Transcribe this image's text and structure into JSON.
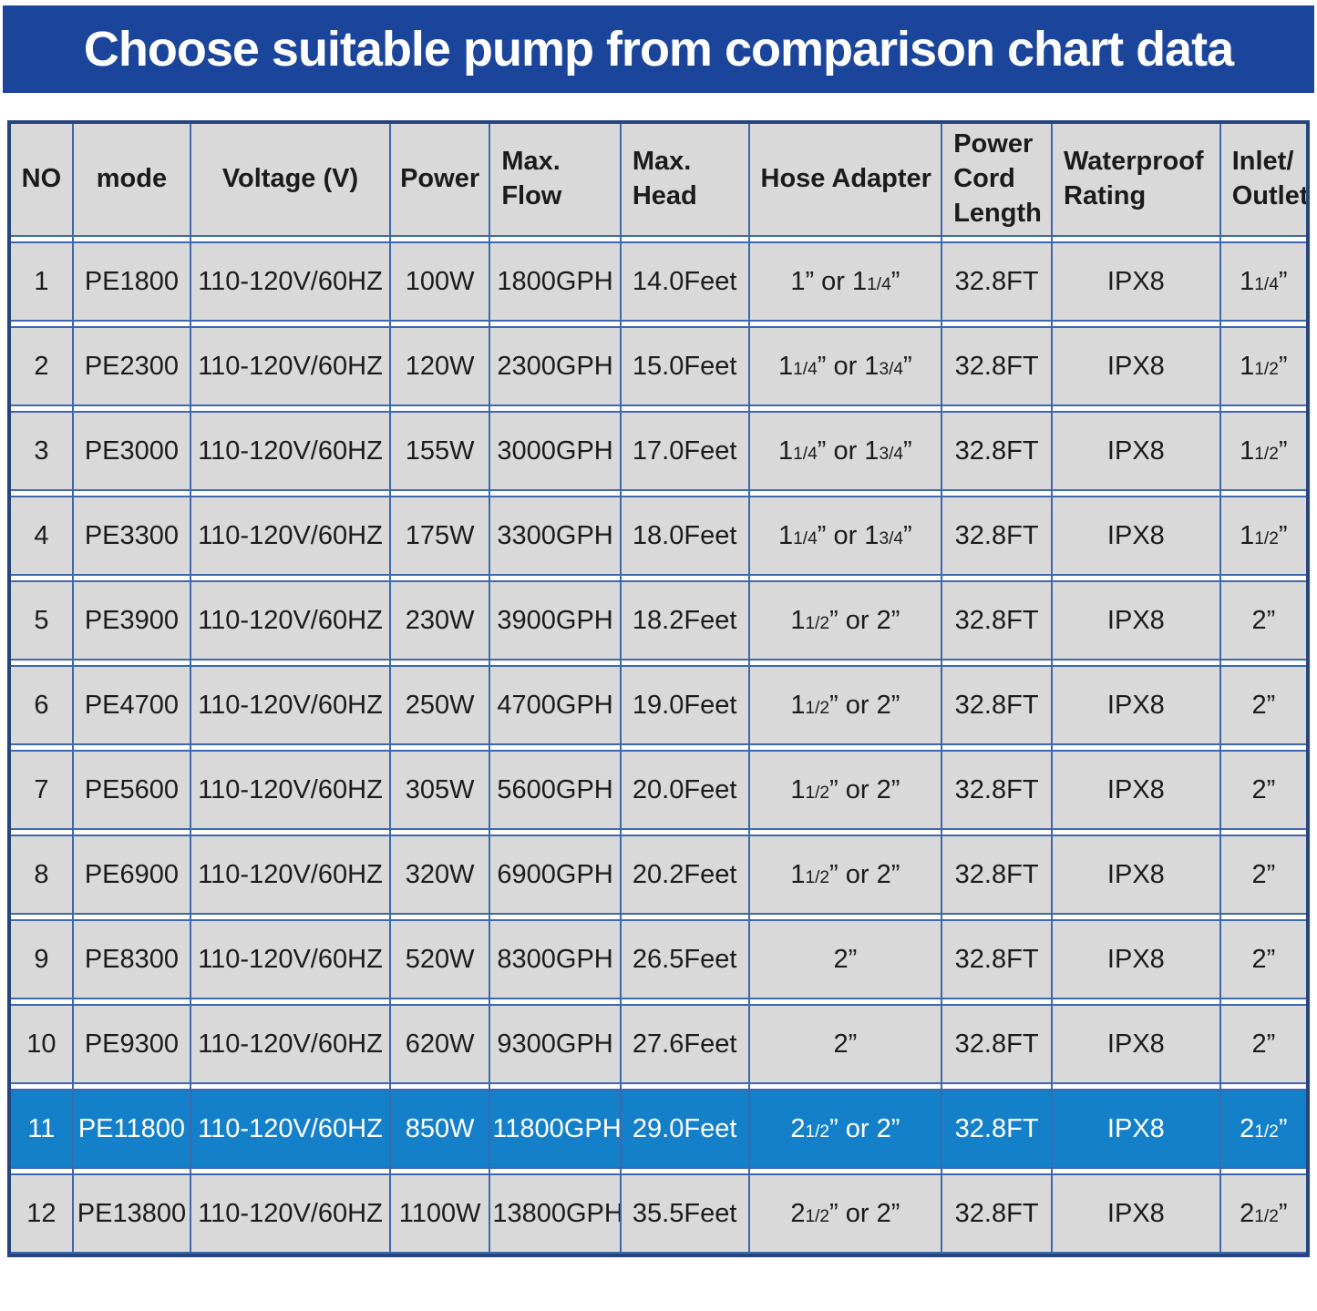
{
  "banner": {
    "title": "Choose suitable pump from comparison chart data"
  },
  "colors": {
    "banner_bg": "#1b459b",
    "outer_border": "#26457e",
    "grid_line": "#3e68ae",
    "cell_bg": "#d9d9d9",
    "highlight_bg": "#1480ca",
    "text_dark": "#1b1b1b",
    "text_light": "#ffffff"
  },
  "chart_data": {
    "type": "table",
    "title": "Choose suitable pump from comparison chart data",
    "highlighted_row_no": "11",
    "columns": [
      {
        "key": "no",
        "label": "NO"
      },
      {
        "key": "mode",
        "label": "mode"
      },
      {
        "key": "voltage",
        "label": "Voltage (V)"
      },
      {
        "key": "power",
        "label": "Power"
      },
      {
        "key": "max_flow",
        "label": "Max.\nFlow"
      },
      {
        "key": "max_head",
        "label": "Max.\nHead"
      },
      {
        "key": "hose_adapter",
        "label": "Hose Adapter"
      },
      {
        "key": "power_cord_length",
        "label": "Power\nCord\nLength"
      },
      {
        "key": "waterproof_rating",
        "label": "Waterproof\nRating"
      },
      {
        "key": "inlet_outlet",
        "label": "Inlet/\nOutlet"
      }
    ],
    "rows": [
      {
        "no": "1",
        "mode": "PE1800",
        "voltage": "110-120V/60HZ",
        "power": "100W",
        "max_flow": "1800GPH",
        "max_head": "14.0Feet",
        "hose_adapter": [
          {
            "t": "1” or 1"
          },
          {
            "t": "1/4",
            "frac": true
          },
          {
            "t": "”"
          }
        ],
        "power_cord_length": "32.8FT",
        "waterproof_rating": "IPX8",
        "inlet_outlet": [
          {
            "t": "1"
          },
          {
            "t": "1/4",
            "frac": true
          },
          {
            "t": "”"
          }
        ],
        "highlighted": false
      },
      {
        "no": "2",
        "mode": "PE2300",
        "voltage": "110-120V/60HZ",
        "power": "120W",
        "max_flow": "2300GPH",
        "max_head": "15.0Feet",
        "hose_adapter": [
          {
            "t": "1"
          },
          {
            "t": "1/4",
            "frac": true
          },
          {
            "t": "” or 1"
          },
          {
            "t": "3/4",
            "frac": true
          },
          {
            "t": "”"
          }
        ],
        "power_cord_length": "32.8FT",
        "waterproof_rating": "IPX8",
        "inlet_outlet": [
          {
            "t": "1"
          },
          {
            "t": "1/2",
            "frac": true
          },
          {
            "t": "”"
          }
        ],
        "highlighted": false
      },
      {
        "no": "3",
        "mode": "PE3000",
        "voltage": "110-120V/60HZ",
        "power": "155W",
        "max_flow": "3000GPH",
        "max_head": "17.0Feet",
        "hose_adapter": [
          {
            "t": "1"
          },
          {
            "t": "1/4",
            "frac": true
          },
          {
            "t": "” or 1"
          },
          {
            "t": "3/4",
            "frac": true
          },
          {
            "t": "”"
          }
        ],
        "power_cord_length": "32.8FT",
        "waterproof_rating": "IPX8",
        "inlet_outlet": [
          {
            "t": "1"
          },
          {
            "t": "1/2",
            "frac": true
          },
          {
            "t": "”"
          }
        ],
        "highlighted": false
      },
      {
        "no": "4",
        "mode": "PE3300",
        "voltage": "110-120V/60HZ",
        "power": "175W",
        "max_flow": "3300GPH",
        "max_head": "18.0Feet",
        "hose_adapter": [
          {
            "t": "1"
          },
          {
            "t": "1/4",
            "frac": true
          },
          {
            "t": "” or 1"
          },
          {
            "t": "3/4",
            "frac": true
          },
          {
            "t": "”"
          }
        ],
        "power_cord_length": "32.8FT",
        "waterproof_rating": "IPX8",
        "inlet_outlet": [
          {
            "t": "1"
          },
          {
            "t": "1/2",
            "frac": true
          },
          {
            "t": "”"
          }
        ],
        "highlighted": false
      },
      {
        "no": "5",
        "mode": "PE3900",
        "voltage": "110-120V/60HZ",
        "power": "230W",
        "max_flow": "3900GPH",
        "max_head": "18.2Feet",
        "hose_adapter": [
          {
            "t": "1"
          },
          {
            "t": "1/2",
            "frac": true
          },
          {
            "t": "” or 2”"
          }
        ],
        "power_cord_length": "32.8FT",
        "waterproof_rating": "IPX8",
        "inlet_outlet": "2”",
        "highlighted": false
      },
      {
        "no": "6",
        "mode": "PE4700",
        "voltage": "110-120V/60HZ",
        "power": "250W",
        "max_flow": "4700GPH",
        "max_head": "19.0Feet",
        "hose_adapter": [
          {
            "t": "1"
          },
          {
            "t": "1/2",
            "frac": true
          },
          {
            "t": "” or 2”"
          }
        ],
        "power_cord_length": "32.8FT",
        "waterproof_rating": "IPX8",
        "inlet_outlet": "2”",
        "highlighted": false
      },
      {
        "no": "7",
        "mode": "PE5600",
        "voltage": "110-120V/60HZ",
        "power": "305W",
        "max_flow": "5600GPH",
        "max_head": "20.0Feet",
        "hose_adapter": [
          {
            "t": "1"
          },
          {
            "t": "1/2",
            "frac": true
          },
          {
            "t": "” or 2”"
          }
        ],
        "power_cord_length": "32.8FT",
        "waterproof_rating": "IPX8",
        "inlet_outlet": "2”",
        "highlighted": false
      },
      {
        "no": "8",
        "mode": "PE6900",
        "voltage": "110-120V/60HZ",
        "power": "320W",
        "max_flow": "6900GPH",
        "max_head": "20.2Feet",
        "hose_adapter": [
          {
            "t": "1"
          },
          {
            "t": "1/2",
            "frac": true
          },
          {
            "t": "” or 2”"
          }
        ],
        "power_cord_length": "32.8FT",
        "waterproof_rating": "IPX8",
        "inlet_outlet": "2”",
        "highlighted": false
      },
      {
        "no": "9",
        "mode": "PE8300",
        "voltage": "110-120V/60HZ",
        "power": "520W",
        "max_flow": "8300GPH",
        "max_head": "26.5Feet",
        "hose_adapter": "2”",
        "power_cord_length": "32.8FT",
        "waterproof_rating": "IPX8",
        "inlet_outlet": "2”",
        "highlighted": false
      },
      {
        "no": "10",
        "mode": "PE9300",
        "voltage": "110-120V/60HZ",
        "power": "620W",
        "max_flow": "9300GPH",
        "max_head": "27.6Feet",
        "hose_adapter": "2”",
        "power_cord_length": "32.8FT",
        "waterproof_rating": "IPX8",
        "inlet_outlet": "2”",
        "highlighted": false
      },
      {
        "no": "11",
        "mode": "PE11800",
        "voltage": "110-120V/60HZ",
        "power": "850W",
        "max_flow": "11800GPH",
        "max_head": "29.0Feet",
        "hose_adapter": [
          {
            "t": "2"
          },
          {
            "t": "1/2",
            "frac": true
          },
          {
            "t": "” or 2”"
          }
        ],
        "power_cord_length": "32.8FT",
        "waterproof_rating": "IPX8",
        "inlet_outlet": [
          {
            "t": "2"
          },
          {
            "t": "1/2",
            "frac": true
          },
          {
            "t": "”"
          }
        ],
        "highlighted": true
      },
      {
        "no": "12",
        "mode": "PE13800",
        "voltage": "110-120V/60HZ",
        "power": "1100W",
        "max_flow": "13800GPH",
        "max_head": "35.5Feet",
        "hose_adapter": [
          {
            "t": "2"
          },
          {
            "t": "1/2",
            "frac": true
          },
          {
            "t": "” or 2”"
          }
        ],
        "power_cord_length": "32.8FT",
        "waterproof_rating": "IPX8",
        "inlet_outlet": [
          {
            "t": "2"
          },
          {
            "t": "1/2",
            "frac": true
          },
          {
            "t": "”"
          }
        ],
        "highlighted": false
      }
    ]
  }
}
